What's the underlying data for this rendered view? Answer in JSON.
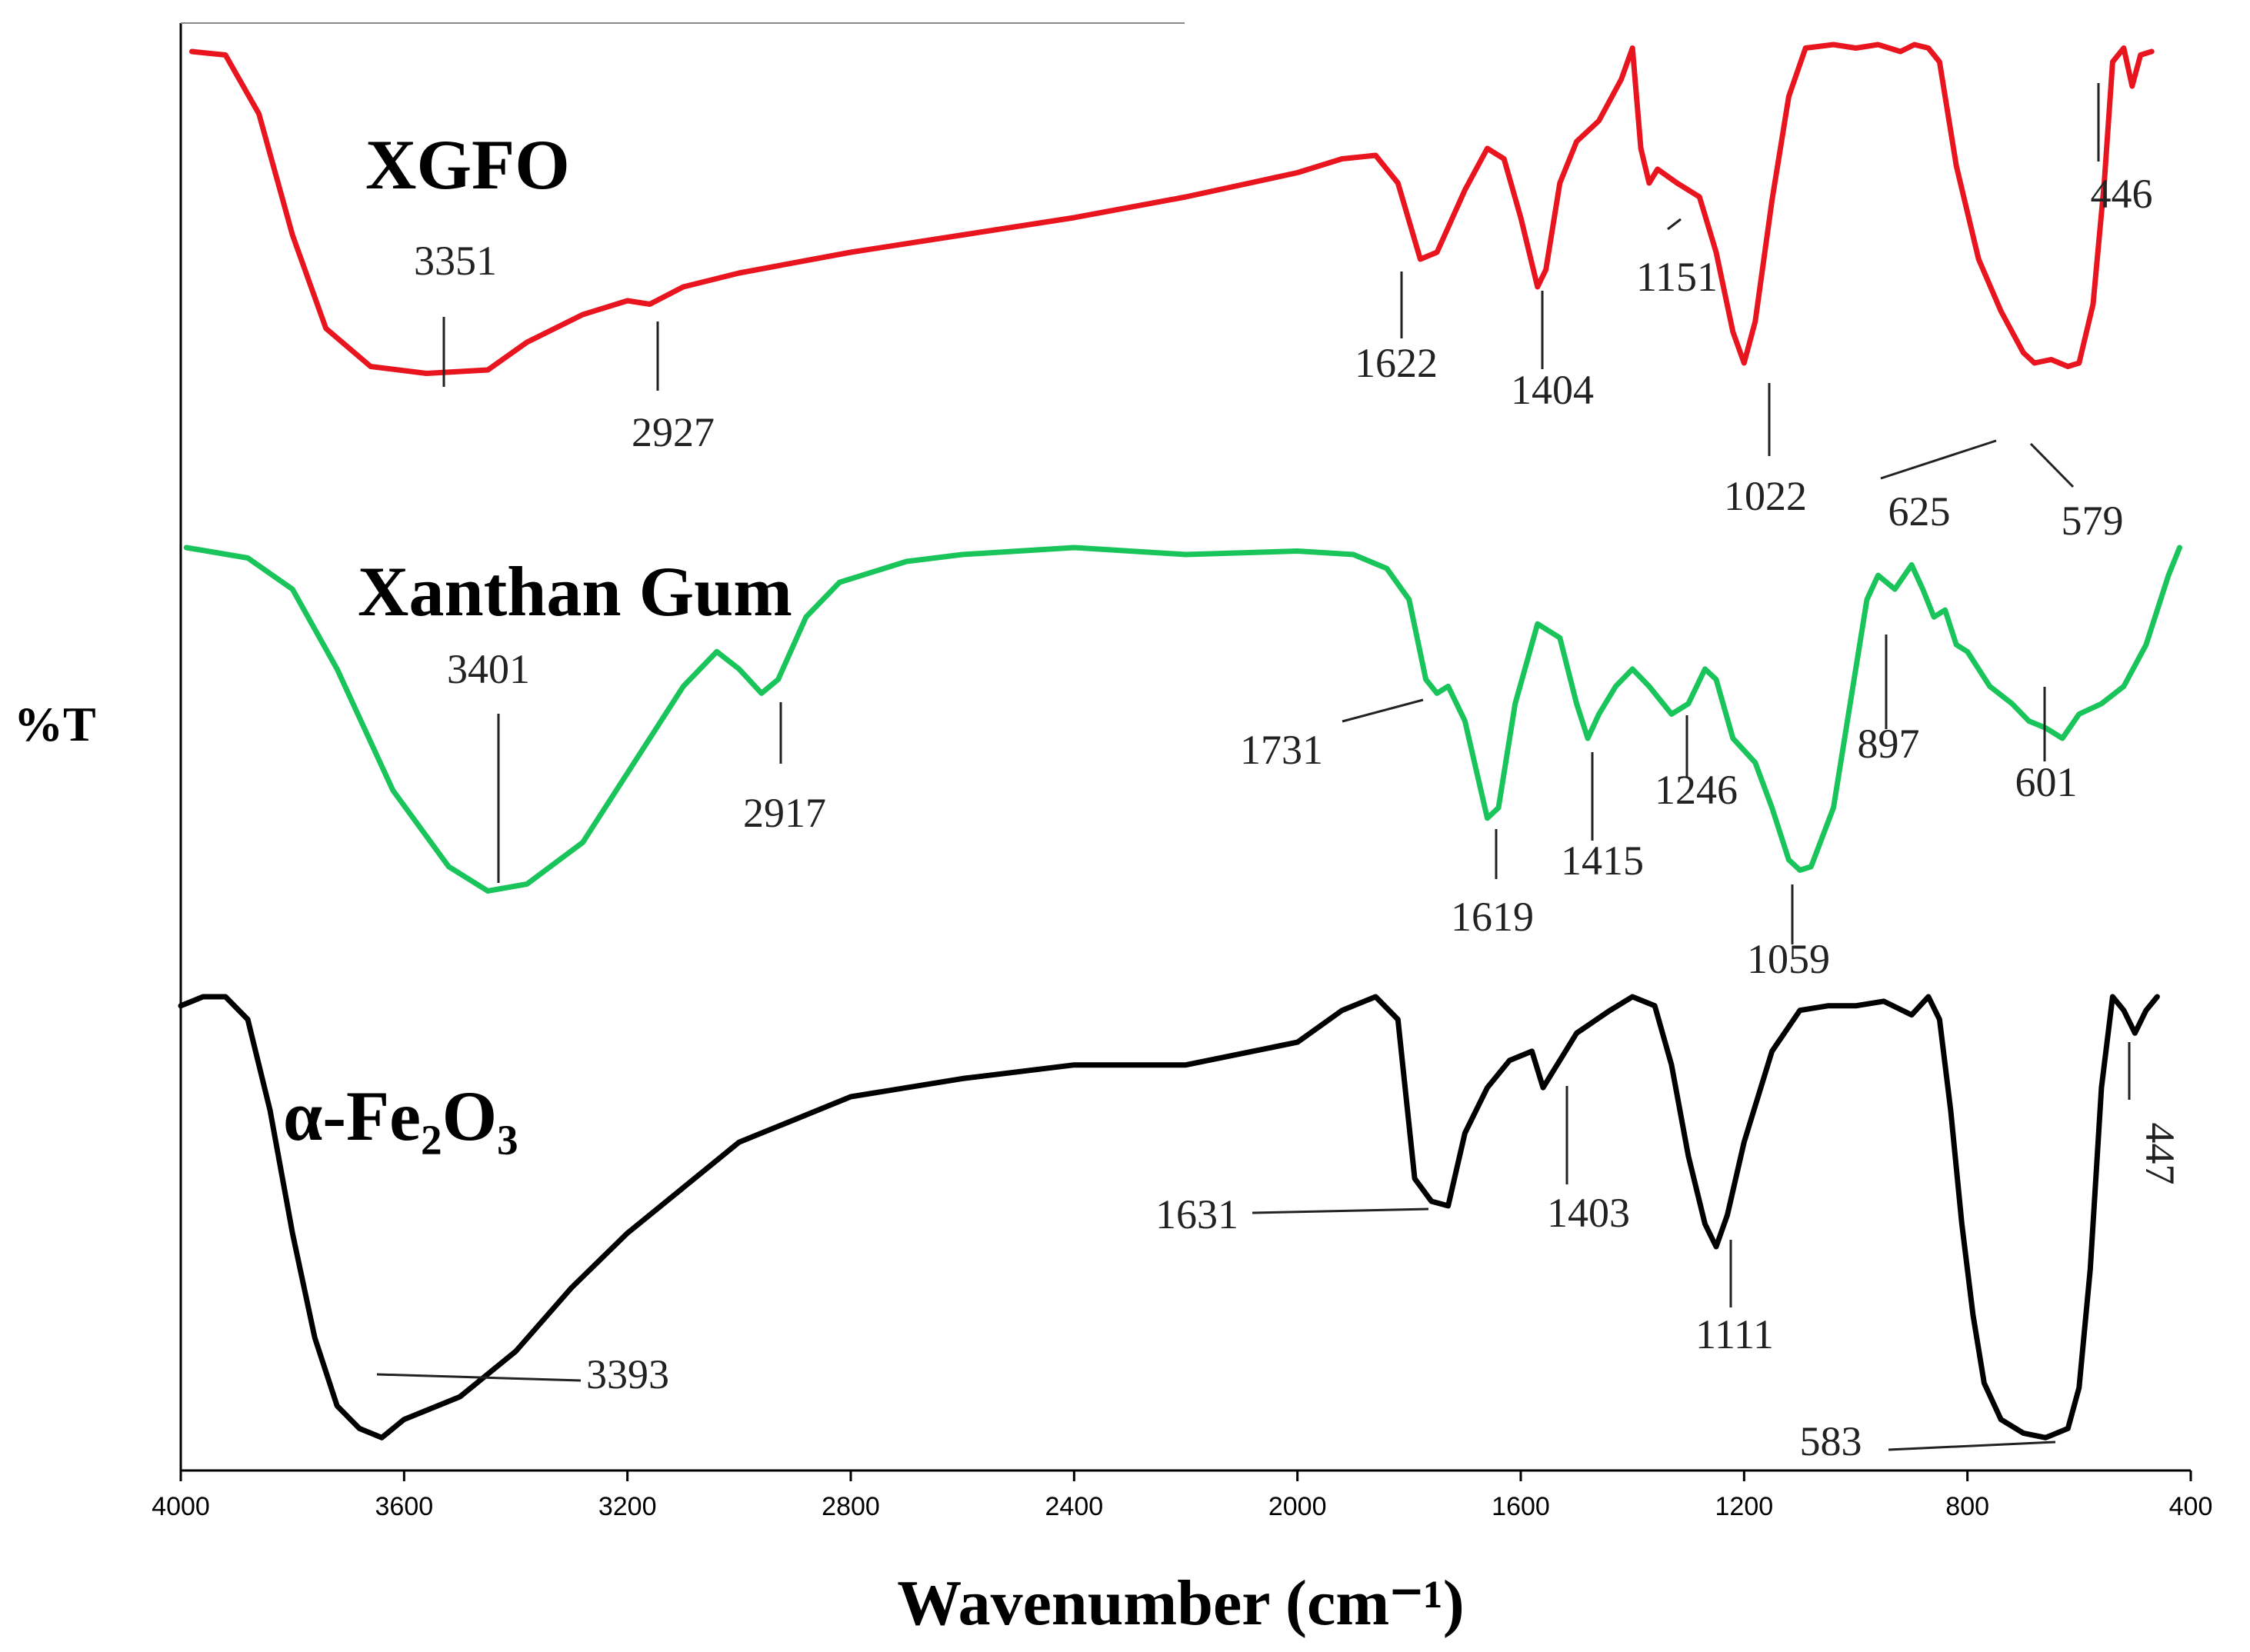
{
  "chart_data": {
    "type": "line",
    "xlabel": "Wavenumber (cm⁻¹)",
    "ylabel": "%T",
    "xlim": [
      4000,
      400
    ],
    "x_reversed": true,
    "x_ticks": [
      "4000",
      "3600",
      "3200",
      "2800",
      "2400",
      "2000",
      "1600",
      "1200",
      "800",
      "400"
    ],
    "y_ticks_shown": false,
    "grid": false,
    "legend": "none",
    "series": [
      {
        "name": "XGFO",
        "color": "#e8141e",
        "points": [
          [
            3980,
            0.02
          ],
          [
            3920,
            0.03
          ],
          [
            3860,
            0.2
          ],
          [
            3800,
            0.55
          ],
          [
            3740,
            0.82
          ],
          [
            3660,
            0.93
          ],
          [
            3560,
            0.95
          ],
          [
            3450,
            0.94
          ],
          [
            3380,
            0.86
          ],
          [
            3280,
            0.78
          ],
          [
            3200,
            0.74
          ],
          [
            3160,
            0.75
          ],
          [
            3100,
            0.7
          ],
          [
            3000,
            0.66
          ],
          [
            2800,
            0.6
          ],
          [
            2600,
            0.55
          ],
          [
            2400,
            0.5
          ],
          [
            2200,
            0.44
          ],
          [
            2000,
            0.37
          ],
          [
            1920,
            0.33
          ],
          [
            1860,
            0.32
          ],
          [
            1820,
            0.4
          ],
          [
            1780,
            0.62
          ],
          [
            1750,
            0.6
          ],
          [
            1700,
            0.42
          ],
          [
            1660,
            0.3
          ],
          [
            1630,
            0.33
          ],
          [
            1600,
            0.5
          ],
          [
            1570,
            0.7
          ],
          [
            1555,
            0.65
          ],
          [
            1530,
            0.4
          ],
          [
            1500,
            0.28
          ],
          [
            1460,
            0.22
          ],
          [
            1420,
            0.1
          ],
          [
            1400,
            0.01
          ],
          [
            1385,
            0.3
          ],
          [
            1370,
            0.4
          ],
          [
            1355,
            0.36
          ],
          [
            1320,
            0.4
          ],
          [
            1280,
            0.44
          ],
          [
            1250,
            0.6
          ],
          [
            1220,
            0.83
          ],
          [
            1200,
            0.92
          ],
          [
            1180,
            0.8
          ],
          [
            1150,
            0.45
          ],
          [
            1120,
            0.15
          ],
          [
            1090,
            0.01
          ],
          [
            1040,
            0.0
          ],
          [
            1000,
            0.01
          ],
          [
            960,
            0.0
          ],
          [
            920,
            0.02
          ],
          [
            895,
            0.0
          ],
          [
            870,
            0.01
          ],
          [
            850,
            0.05
          ],
          [
            820,
            0.35
          ],
          [
            780,
            0.62
          ],
          [
            740,
            0.77
          ],
          [
            700,
            0.89
          ],
          [
            680,
            0.92
          ],
          [
            650,
            0.91
          ],
          [
            620,
            0.93
          ],
          [
            600,
            0.92
          ],
          [
            575,
            0.75
          ],
          [
            555,
            0.4
          ],
          [
            540,
            0.05
          ],
          [
            520,
            0.01
          ],
          [
            505,
            0.12
          ],
          [
            490,
            0.03
          ],
          [
            470,
            0.02
          ]
        ],
        "annotations": [
          "3351",
          "2927",
          "1622",
          "1404",
          "1151",
          "1022",
          "625",
          "579",
          "446"
        ]
      },
      {
        "name": "Xanthan Gum",
        "color": "#19c45a",
        "points": [
          [
            3990,
            0.0
          ],
          [
            3880,
            0.03
          ],
          [
            3800,
            0.12
          ],
          [
            3720,
            0.35
          ],
          [
            3620,
            0.7
          ],
          [
            3520,
            0.92
          ],
          [
            3450,
            0.99
          ],
          [
            3380,
            0.97
          ],
          [
            3280,
            0.85
          ],
          [
            3180,
            0.6
          ],
          [
            3100,
            0.4
          ],
          [
            3040,
            0.3
          ],
          [
            3000,
            0.35
          ],
          [
            2960,
            0.42
          ],
          [
            2930,
            0.38
          ],
          [
            2880,
            0.2
          ],
          [
            2820,
            0.1
          ],
          [
            2700,
            0.04
          ],
          [
            2600,
            0.02
          ],
          [
            2500,
            0.01
          ],
          [
            2400,
            0.0
          ],
          [
            2200,
            0.02
          ],
          [
            2000,
            0.01
          ],
          [
            1900,
            0.02
          ],
          [
            1840,
            0.06
          ],
          [
            1800,
            0.15
          ],
          [
            1770,
            0.38
          ],
          [
            1750,
            0.42
          ],
          [
            1730,
            0.4
          ],
          [
            1700,
            0.5
          ],
          [
            1660,
            0.78
          ],
          [
            1640,
            0.75
          ],
          [
            1610,
            0.45
          ],
          [
            1570,
            0.22
          ],
          [
            1530,
            0.26
          ],
          [
            1500,
            0.45
          ],
          [
            1480,
            0.55
          ],
          [
            1460,
            0.48
          ],
          [
            1430,
            0.4
          ],
          [
            1400,
            0.35
          ],
          [
            1370,
            0.4
          ],
          [
            1330,
            0.48
          ],
          [
            1300,
            0.45
          ],
          [
            1270,
            0.35
          ],
          [
            1250,
            0.38
          ],
          [
            1220,
            0.55
          ],
          [
            1180,
            0.62
          ],
          [
            1150,
            0.75
          ],
          [
            1120,
            0.9
          ],
          [
            1100,
            0.93
          ],
          [
            1080,
            0.92
          ],
          [
            1040,
            0.75
          ],
          [
            1010,
            0.45
          ],
          [
            980,
            0.15
          ],
          [
            960,
            0.08
          ],
          [
            930,
            0.12
          ],
          [
            900,
            0.05
          ],
          [
            880,
            0.12
          ],
          [
            860,
            0.2
          ],
          [
            840,
            0.18
          ],
          [
            820,
            0.28
          ],
          [
            800,
            0.3
          ],
          [
            760,
            0.4
          ],
          [
            720,
            0.45
          ],
          [
            690,
            0.5
          ],
          [
            660,
            0.52
          ],
          [
            630,
            0.55
          ],
          [
            600,
            0.48
          ],
          [
            560,
            0.45
          ],
          [
            520,
            0.4
          ],
          [
            480,
            0.28
          ],
          [
            440,
            0.08
          ],
          [
            420,
            0.0
          ]
        ],
        "annotations": [
          "3401",
          "2917",
          "1731",
          "1619",
          "1415",
          "1246",
          "1059",
          "897",
          "601"
        ]
      },
      {
        "name": "α-Fe₂O₃",
        "color": "#000000",
        "points": [
          [
            4000,
            0.02
          ],
          [
            3960,
            0.0
          ],
          [
            3920,
            0.0
          ],
          [
            3880,
            0.05
          ],
          [
            3840,
            0.25
          ],
          [
            3800,
            0.52
          ],
          [
            3760,
            0.75
          ],
          [
            3720,
            0.9
          ],
          [
            3680,
            0.95
          ],
          [
            3640,
            0.97
          ],
          [
            3600,
            0.93
          ],
          [
            3500,
            0.88
          ],
          [
            3400,
            0.78
          ],
          [
            3300,
            0.64
          ],
          [
            3200,
            0.52
          ],
          [
            3100,
            0.42
          ],
          [
            3000,
            0.32
          ],
          [
            2900,
            0.27
          ],
          [
            2800,
            0.22
          ],
          [
            2600,
            0.18
          ],
          [
            2400,
            0.15
          ],
          [
            2200,
            0.15
          ],
          [
            2000,
            0.1
          ],
          [
            1920,
            0.03
          ],
          [
            1860,
            0.0
          ],
          [
            1820,
            0.05
          ],
          [
            1790,
            0.4
          ],
          [
            1760,
            0.45
          ],
          [
            1730,
            0.46
          ],
          [
            1700,
            0.3
          ],
          [
            1660,
            0.2
          ],
          [
            1620,
            0.14
          ],
          [
            1580,
            0.12
          ],
          [
            1560,
            0.2
          ],
          [
            1540,
            0.16
          ],
          [
            1520,
            0.12
          ],
          [
            1500,
            0.08
          ],
          [
            1440,
            0.03
          ],
          [
            1400,
            0.0
          ],
          [
            1360,
            0.02
          ],
          [
            1330,
            0.15
          ],
          [
            1300,
            0.35
          ],
          [
            1270,
            0.5
          ],
          [
            1250,
            0.55
          ],
          [
            1230,
            0.48
          ],
          [
            1200,
            0.32
          ],
          [
            1150,
            0.12
          ],
          [
            1100,
            0.03
          ],
          [
            1050,
            0.02
          ],
          [
            1000,
            0.02
          ],
          [
            950,
            0.01
          ],
          [
            900,
            0.04
          ],
          [
            870,
            0.0
          ],
          [
            850,
            0.05
          ],
          [
            830,
            0.25
          ],
          [
            810,
            0.5
          ],
          [
            790,
            0.7
          ],
          [
            770,
            0.85
          ],
          [
            740,
            0.93
          ],
          [
            700,
            0.96
          ],
          [
            660,
            0.97
          ],
          [
            620,
            0.95
          ],
          [
            600,
            0.86
          ],
          [
            580,
            0.6
          ],
          [
            560,
            0.2
          ],
          [
            540,
            0.0
          ],
          [
            520,
            0.03
          ],
          [
            500,
            0.08
          ],
          [
            480,
            0.03
          ],
          [
            460,
            0.0
          ]
        ],
        "annotations": [
          "3393",
          "1631",
          "1403",
          "1111",
          "583",
          "447"
        ]
      }
    ]
  }
}
